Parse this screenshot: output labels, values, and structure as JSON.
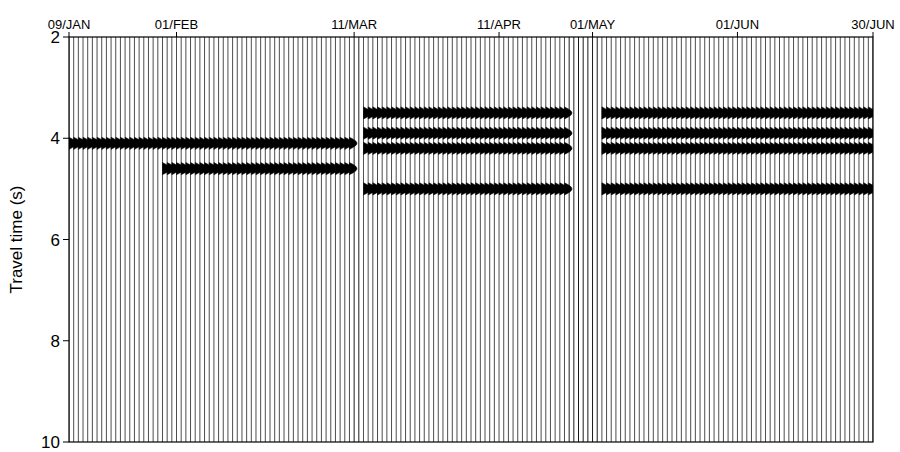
{
  "chart_data": {
    "type": "wiggle",
    "y_label": "Travel time (s)",
    "x": [
      0,
      1,
      2,
      3,
      4,
      5,
      6,
      7,
      8,
      9,
      10,
      11,
      12,
      13,
      14,
      15,
      16,
      17,
      18,
      19,
      20,
      21,
      22,
      23,
      24,
      25,
      26,
      27,
      28,
      29,
      30,
      31,
      32,
      33,
      34,
      35,
      36,
      37,
      38,
      39,
      40,
      41,
      42,
      43,
      44,
      45,
      46,
      47,
      48,
      49,
      50,
      51,
      52,
      53,
      54,
      55,
      56,
      57,
      58,
      59,
      60,
      61,
      62,
      63,
      64,
      65,
      66,
      67,
      68,
      69,
      70,
      71,
      72,
      73,
      74,
      75,
      76,
      77,
      78,
      79,
      80,
      81,
      82,
      83,
      84,
      85,
      86,
      87,
      88,
      89,
      90,
      91,
      92,
      93,
      94,
      95,
      96,
      97,
      98,
      99,
      100,
      101,
      102,
      103,
      104,
      105,
      106,
      107,
      108,
      109,
      110,
      111,
      112,
      113,
      114,
      115,
      116,
      117,
      118,
      119,
      120,
      121,
      122,
      123,
      124,
      125,
      126,
      127,
      128,
      129,
      130,
      131,
      132,
      133,
      134,
      135,
      136,
      137,
      138,
      139,
      140,
      141,
      142,
      143,
      144,
      145,
      146,
      147,
      148,
      149,
      150,
      151,
      152,
      153,
      154,
      155,
      156,
      157,
      158,
      159,
      160,
      161,
      162,
      163,
      164,
      165,
      166,
      167,
      168,
      169,
      170,
      171,
      172
    ],
    "dead_traces": [
      61,
      62,
      107,
      108,
      109,
      110,
      111,
      112,
      113
    ],
    "arrivals": [
      {
        "time": 4.1,
        "x_range": [
          0,
          60
        ]
      },
      {
        "time": 4.6,
        "x_range": [
          20,
          60
        ]
      },
      {
        "time": 3.5,
        "x_range": [
          63,
          172
        ]
      },
      {
        "time": 3.9,
        "x_range": [
          63,
          172
        ]
      },
      {
        "time": 4.2,
        "x_range": [
          63,
          172
        ]
      },
      {
        "time": 5.0,
        "x_range": [
          63,
          172
        ]
      }
    ],
    "xlim": [
      0,
      172
    ],
    "xticks": [
      {
        "value": 0,
        "label": "09/JAN"
      },
      {
        "value": 23,
        "label": "01/FEB"
      },
      {
        "value": 61,
        "label": "11/MAR"
      },
      {
        "value": 92,
        "label": "11/APR"
      },
      {
        "value": 112,
        "label": "01/MAY"
      },
      {
        "value": 143,
        "label": "01/JUN"
      },
      {
        "value": 172,
        "label": "30/JUN"
      }
    ],
    "ylim": [
      2,
      10
    ],
    "yticks": [
      2,
      4,
      6,
      8,
      10
    ]
  }
}
